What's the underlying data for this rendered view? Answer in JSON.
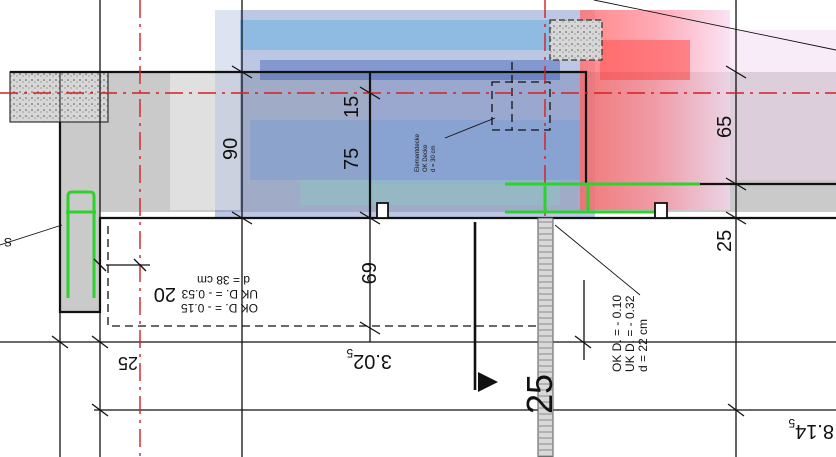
{
  "drawing": {
    "dims": {
      "d90": "90",
      "d75": "75",
      "d15": "15",
      "d65": "65",
      "d25_right": "25",
      "d69": "69",
      "d20": "20",
      "d25_left": "25",
      "d302": "3.02",
      "d302_sub": "5",
      "d25_large": "25",
      "d814": "8.14",
      "d814_sub": "5"
    },
    "notes": {
      "slab_left": [
        "OK D. = - 0.15",
        "UK D. = - 0.53",
        "d = 38 cm"
      ],
      "slab_right": [
        "OK D. = - 0.10",
        "UK D. = - 0.32",
        "d = 22 cm"
      ],
      "small_label": [
        "Elementdecke",
        "OK Decke",
        "d = 30 cm"
      ],
      "edge_letter": "S"
    },
    "colors": {
      "concrete": "#c9c9c9",
      "rebar": "#2fd12f",
      "axis": "#d42020",
      "line": "#111111"
    }
  }
}
